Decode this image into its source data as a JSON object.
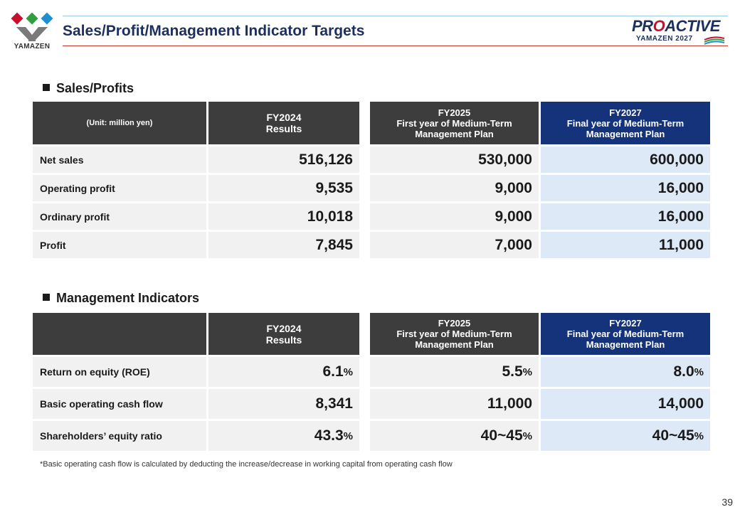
{
  "header": {
    "logo_text": "YAMAZEN",
    "title": "Sales/Profit/Management Indicator Targets",
    "brand_main_a": "PR",
    "brand_main_b": "O",
    "brand_main_c": "ACTIVE",
    "brand_sub": "YAMAZEN 2027"
  },
  "colors": {
    "title": "#1c2f5e",
    "header_dark": "#3d3d3d",
    "header_navy": "#14337a",
    "row_grey": "#f1f1f1",
    "row_blue": "#dde9f6",
    "accent_red": "#c8102e"
  },
  "sales": {
    "heading": "Sales/Profits",
    "unit_label": "(Unit: million yen)",
    "col_fy2024": {
      "year": "FY2024",
      "sub": "Results"
    },
    "col_fy2025": {
      "year": "FY2025",
      "line1": "First year of Medium-Term",
      "line2": "Management Plan"
    },
    "col_fy2027": {
      "year": "FY2027",
      "line1": "Final year of Medium-Term",
      "line2": "Management Plan"
    },
    "rows": [
      {
        "label": "Net sales",
        "fy2024": "516,126",
        "fy2025": "530,000",
        "fy2027": "600,000"
      },
      {
        "label": "Operating profit",
        "fy2024": "9,535",
        "fy2025": "9,000",
        "fy2027": "16,000"
      },
      {
        "label": "Ordinary profit",
        "fy2024": "10,018",
        "fy2025": "9,000",
        "fy2027": "16,000"
      },
      {
        "label": "Profit",
        "fy2024": "7,845",
        "fy2025": "7,000",
        "fy2027": "11,000"
      }
    ]
  },
  "indicators": {
    "heading": "Management Indicators",
    "col_fy2024": {
      "year": "FY2024",
      "sub": "Results"
    },
    "col_fy2025": {
      "year": "FY2025",
      "line1": "First year of Medium-Term",
      "line2": "Management Plan"
    },
    "col_fy2027": {
      "year": "FY2027",
      "line1": "Final year of Medium-Term",
      "line2": "Management Plan"
    },
    "rows": [
      {
        "label": "Return on equity (ROE)",
        "fy2024": "6.1",
        "fy2024_unit": "%",
        "fy2025": "5.5",
        "fy2025_unit": "%",
        "fy2027": "8.0",
        "fy2027_unit": "%"
      },
      {
        "label": "Basic operating cash flow",
        "fy2024": "8,341",
        "fy2024_unit": "",
        "fy2025": "11,000",
        "fy2025_unit": "",
        "fy2027": "14,000",
        "fy2027_unit": ""
      },
      {
        "label": "Shareholders’ equity ratio",
        "fy2024": "43.3",
        "fy2024_unit": "%",
        "fy2025": "40~45",
        "fy2025_unit": "%",
        "fy2027": "40~45",
        "fy2027_unit": "%"
      }
    ]
  },
  "footnote": "*Basic operating cash flow is calculated by deducting the increase/decrease in working capital from operating cash flow",
  "page_number": "39"
}
